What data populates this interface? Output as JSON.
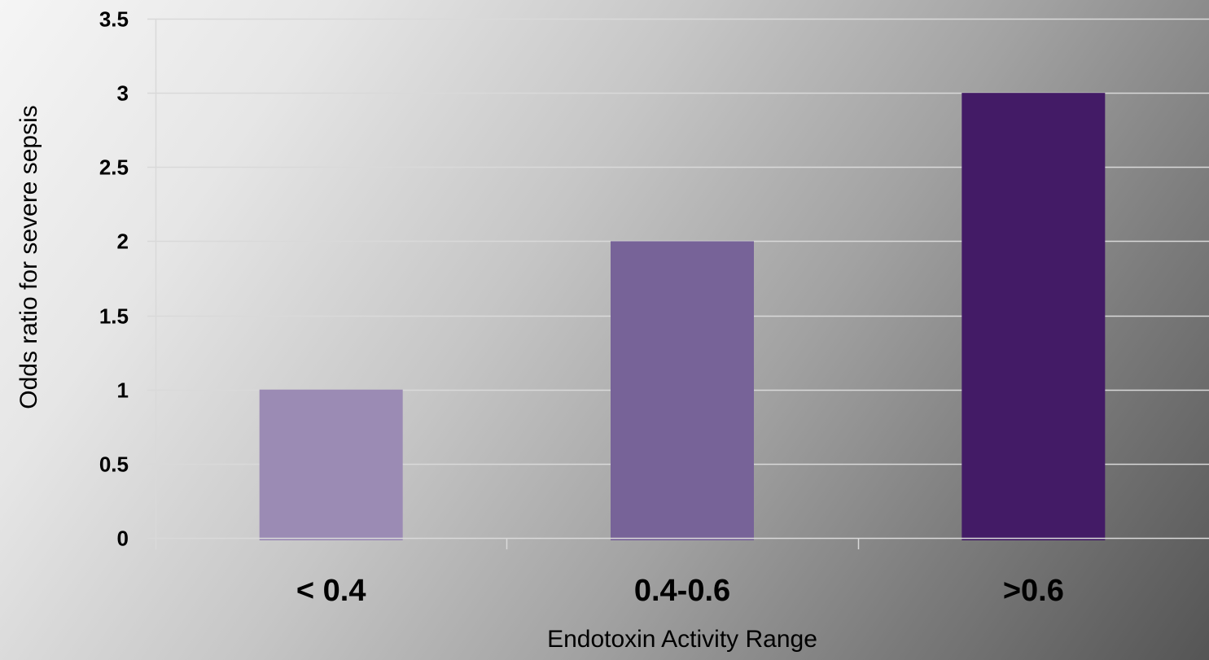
{
  "chart_data": {
    "type": "bar",
    "categories": [
      "< 0.4",
      "0.4-0.6",
      ">0.6"
    ],
    "values": [
      1,
      2,
      3
    ],
    "xlabel": "Endotoxin Activity Range",
    "ylabel": "Odds ratio for severe sepsis",
    "ylim": [
      0,
      3.5
    ],
    "yticks": [
      "0",
      "0.5",
      "1",
      "1.5",
      "2",
      "2.5",
      "3",
      "3.5"
    ],
    "grid": true,
    "legend": "none",
    "bar_colors": [
      "#9b8bb4",
      "#776398",
      "#431b66"
    ],
    "gridline_color": "#d9d9d9"
  }
}
